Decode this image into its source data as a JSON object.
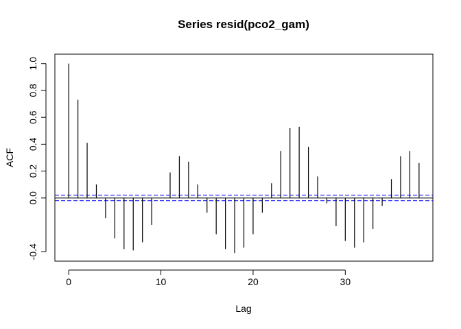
{
  "chart_data": {
    "type": "bar",
    "title": "Series  resid(pco2_gam)",
    "xlabel": "Lag",
    "ylabel": "ACF",
    "xlim": [
      -1.5,
      39.5
    ],
    "ylim": [
      -0.47,
      1.07
    ],
    "x_ticks": [
      0,
      10,
      20,
      30
    ],
    "y_ticks": [
      -0.4,
      0.0,
      0.2,
      0.4,
      0.6,
      0.8,
      1.0
    ],
    "y_tick_labels": [
      "-0.4",
      "0.0",
      "0.2",
      "0.4",
      "0.6",
      "0.8",
      "1.0"
    ],
    "lags": [
      0,
      1,
      2,
      3,
      4,
      5,
      6,
      7,
      8,
      9,
      10,
      11,
      12,
      13,
      14,
      15,
      16,
      17,
      18,
      19,
      20,
      21,
      22,
      23,
      24,
      25,
      26,
      27,
      28,
      29,
      30,
      31,
      32,
      33,
      34,
      35,
      36,
      37,
      38
    ],
    "values": [
      1.0,
      0.73,
      0.41,
      0.1,
      -0.15,
      -0.3,
      -0.38,
      -0.39,
      -0.33,
      -0.2,
      0.0,
      0.19,
      0.31,
      0.27,
      0.1,
      -0.11,
      -0.27,
      -0.38,
      -0.41,
      -0.37,
      -0.27,
      -0.11,
      0.11,
      0.35,
      0.52,
      0.53,
      0.38,
      0.16,
      -0.04,
      -0.21,
      -0.32,
      -0.37,
      -0.33,
      -0.23,
      -0.06,
      0.14,
      0.31,
      0.35,
      0.26
    ],
    "confidence_limit": 0.02,
    "confidence_color": "#0000ff",
    "grid": false
  }
}
